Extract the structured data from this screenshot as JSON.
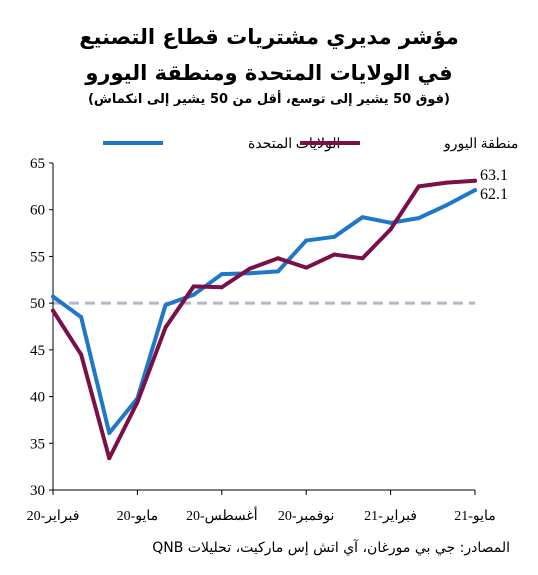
{
  "title_line1": "مؤشر مديري مشتريات قطاع التصنيع",
  "title_line2": "في الولايات المتحدة ومنطقة اليورو",
  "subtitle": "(فوق 50 يشير إلى توسع، أقل من 50 يشير إلى انكماش)",
  "source": "المصادر: جي بي مورغان، آي اتش إس ماركيت، تحليلات QNB",
  "colors": {
    "us": "#1f77c8",
    "euro": "#7b1048",
    "reference": "#b8b8c8",
    "axis": "#000000"
  },
  "chart_data": {
    "type": "line",
    "ylim": [
      30,
      65
    ],
    "yticks": [
      30,
      35,
      40,
      45,
      50,
      55,
      60,
      65
    ],
    "x_tick_labels": [
      "فبراير-20",
      "مايو-20",
      "أغسطس-20",
      "نوفمبر-20",
      "فبراير-21",
      "مايو-21"
    ],
    "x_tick_indices": [
      0,
      3,
      6,
      9,
      12,
      15
    ],
    "months": [
      "فبراير-20",
      "مارس-20",
      "أبريل-20",
      "مايو-20",
      "يونيو-20",
      "يوليو-20",
      "أغسطس-20",
      "سبتمبر-20",
      "أكتوبر-20",
      "نوفمبر-20",
      "ديسمبر-20",
      "يناير-21",
      "فبراير-21",
      "مارس-21",
      "أبريل-21",
      "مايو-21"
    ],
    "reference_line": 50,
    "legend_position": "top",
    "series": [
      {
        "key": "us",
        "name": "الولايات المتحدة",
        "values": [
          50.7,
          48.5,
          36.1,
          39.8,
          49.8,
          50.9,
          53.1,
          53.2,
          53.4,
          56.7,
          57.1,
          59.2,
          58.6,
          59.1,
          60.5,
          62.1
        ],
        "end_label": "62.1"
      },
      {
        "key": "euro",
        "name": "منطقة اليورو",
        "values": [
          49.2,
          44.5,
          33.4,
          39.4,
          47.4,
          51.8,
          51.7,
          53.7,
          54.8,
          53.8,
          55.2,
          54.8,
          57.9,
          62.5,
          62.9,
          63.1
        ],
        "end_label": "63.1"
      }
    ]
  }
}
